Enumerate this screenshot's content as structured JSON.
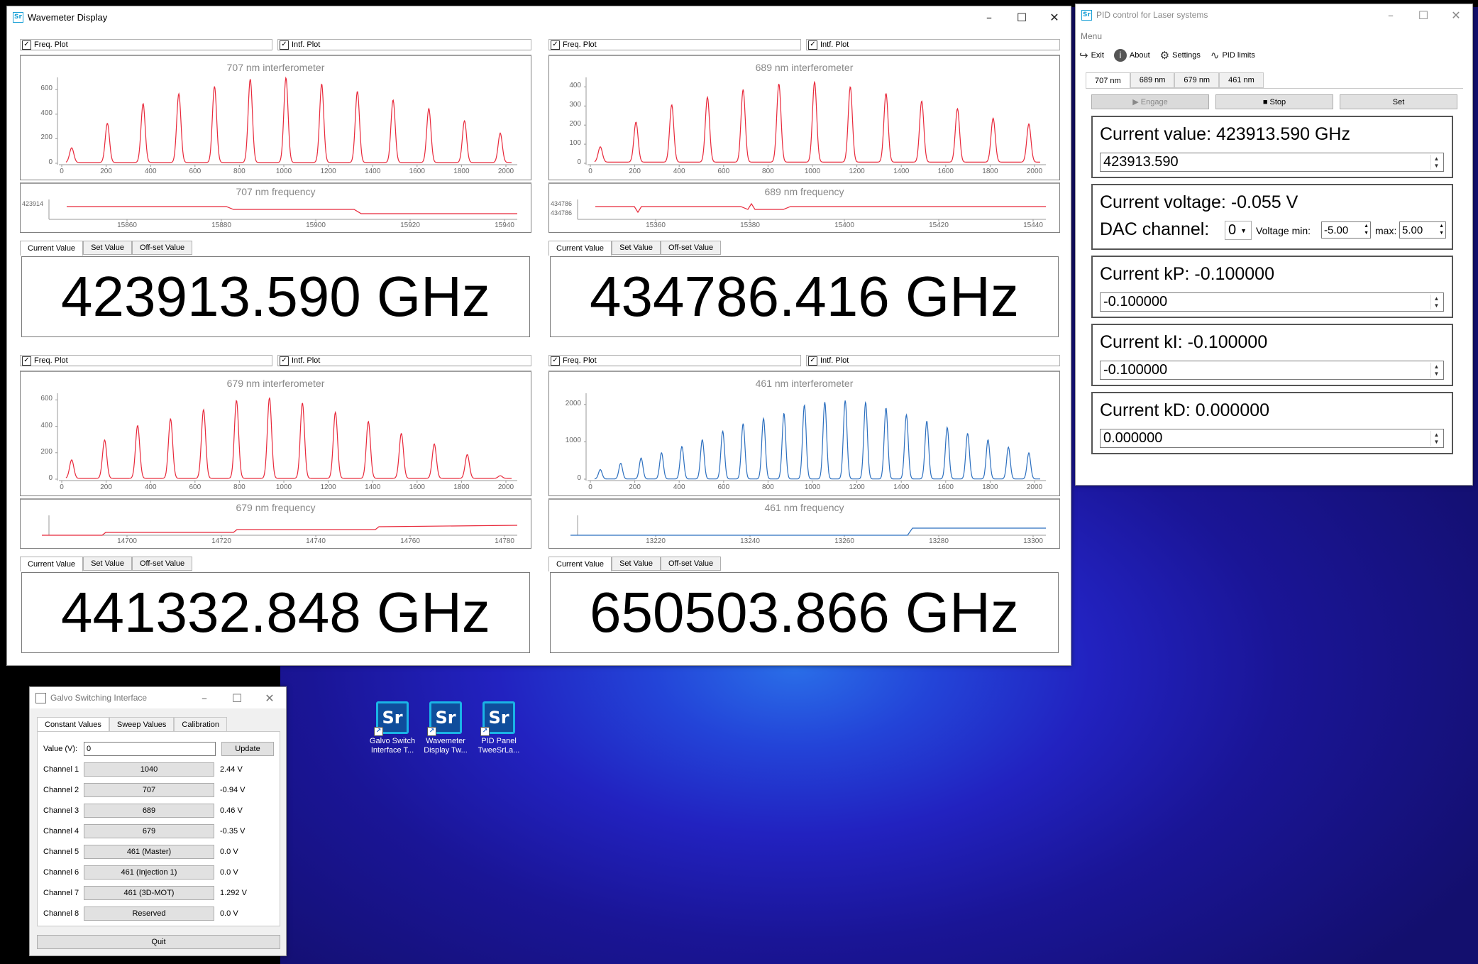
{
  "wavemeter": {
    "title": "Wavemeter Display",
    "freq_plot_label": "Freq. Plot",
    "intf_plot_label": "Intf. Plot",
    "tab_current": "Current Value",
    "tab_set": "Set Value",
    "tab_offset": "Off-set Value",
    "channels": [
      {
        "intf_title": "707 nm interferometer",
        "intf_y_ticks": [
          "600",
          "400",
          "200",
          "0"
        ],
        "intf_y_max": 700,
        "intf_peaks": [
          120,
          320,
          480,
          560,
          620,
          680,
          690,
          640,
          580,
          510,
          440,
          340,
          240
        ],
        "freq_title": "707 nm frequency",
        "freq_y_ticks": [
          "423914"
        ],
        "freq_x_ticks": [
          "15860",
          "15880",
          "15900",
          "15920",
          "15940"
        ],
        "value": "423913.590 GHz",
        "color": "#e8283a"
      },
      {
        "intf_title": "689 nm interferometer",
        "intf_y_ticks": [
          "400",
          "300",
          "200",
          "100",
          "0"
        ],
        "intf_y_max": 450,
        "intf_peaks": [
          80,
          210,
          300,
          340,
          380,
          410,
          420,
          395,
          360,
          320,
          280,
          230,
          200
        ],
        "freq_title": "689 nm frequency",
        "freq_y_ticks": [
          "434786",
          "434786"
        ],
        "freq_x_ticks": [
          "15360",
          "15380",
          "15400",
          "15420",
          "15440"
        ],
        "value": "434786.416 GHz",
        "color": "#e8283a"
      },
      {
        "intf_title": "679 nm interferometer",
        "intf_y_ticks": [
          "600",
          "400",
          "200",
          "0"
        ],
        "intf_y_max": 650,
        "intf_peaks": [
          140,
          290,
          400,
          450,
          520,
          590,
          610,
          570,
          500,
          430,
          340,
          260,
          180,
          20
        ],
        "freq_title": "679 nm frequency",
        "freq_y_ticks": [],
        "freq_x_ticks": [
          "14700",
          "14720",
          "14740",
          "14760",
          "14780"
        ],
        "value": "441332.848 GHz",
        "color": "#e8283a"
      },
      {
        "intf_title": "461 nm interferometer",
        "intf_y_ticks": [
          "2000",
          "1000",
          "0"
        ],
        "intf_y_max": 2300,
        "intf_peaks": [
          250,
          420,
          560,
          700,
          870,
          1050,
          1280,
          1480,
          1620,
          1760,
          1980,
          2060,
          2100,
          2050,
          1900,
          1720,
          1550,
          1380,
          1220,
          1050,
          850,
          700
        ],
        "freq_title": "461 nm frequency",
        "freq_y_ticks": [],
        "freq_x_ticks": [
          "13220",
          "13240",
          "13260",
          "13280",
          "13300"
        ],
        "value": "650503.866 GHz",
        "color": "#2c6fbf"
      }
    ],
    "intf_x_ticks": [
      "0",
      "200",
      "400",
      "600",
      "800",
      "1000",
      "1200",
      "1400",
      "1600",
      "1800",
      "2000"
    ]
  },
  "pid": {
    "title": "PID control for Laser systems",
    "menu": "Menu",
    "toolbar": {
      "exit": "Exit",
      "about": "About",
      "settings": "Settings",
      "pid_limits": "PID limits"
    },
    "tabs": [
      "707 nm",
      "689 nm",
      "679 nm",
      "461 nm"
    ],
    "buttons": {
      "engage": "Engage",
      "stop": "Stop",
      "set": "Set"
    },
    "current_value_label": "Current value: 423913.590 GHz",
    "current_value_input": "423913.590",
    "voltage_label": "Current voltage: -0.055 V",
    "dac_label": "DAC channel:",
    "dac_value": "0",
    "vmin_label": "Voltage min:",
    "vmin_value": "-5.00",
    "vmax_label": "max:",
    "vmax_value": "5.00",
    "kp_label": "Current kP: -0.100000",
    "kp_input": "-0.100000",
    "ki_label": "Current kI: -0.100000",
    "ki_input": "-0.100000",
    "kd_label": "Current kD: 0.000000",
    "kd_input": "0.000000"
  },
  "galvo": {
    "title": "Galvo Switching Interface",
    "tabs": [
      "Constant Values",
      "Sweep Values",
      "Calibration"
    ],
    "value_label": "Value (V):",
    "value_input": "0",
    "update": "Update",
    "channels": [
      {
        "label": "Channel 1",
        "name": "1040",
        "voltage": "2.44 V"
      },
      {
        "label": "Channel 2",
        "name": "707",
        "voltage": "-0.94 V"
      },
      {
        "label": "Channel 3",
        "name": "689",
        "voltage": "0.46 V"
      },
      {
        "label": "Channel 4",
        "name": "679",
        "voltage": "-0.35 V"
      },
      {
        "label": "Channel 5",
        "name": "461 (Master)",
        "voltage": "0.0 V"
      },
      {
        "label": "Channel 6",
        "name": "461 (Injection 1)",
        "voltage": "0.0 V"
      },
      {
        "label": "Channel 7",
        "name": "461 (3D-MOT)",
        "voltage": "1.292 V"
      },
      {
        "label": "Channel 8",
        "name": "Reserved",
        "voltage": "0.0 V"
      }
    ],
    "quit": "Quit"
  },
  "desktop_icons": [
    {
      "line1": "Galvo Switch",
      "line2": "Interface T..."
    },
    {
      "line1": "Wavemeter",
      "line2": "Display Tw..."
    },
    {
      "line1": "PID Panel",
      "line2": "TweeSrLa..."
    }
  ],
  "icons": {
    "app": "Sr",
    "minimize": "minimize-icon",
    "maximize": "maximize-icon",
    "close": "close-icon"
  }
}
